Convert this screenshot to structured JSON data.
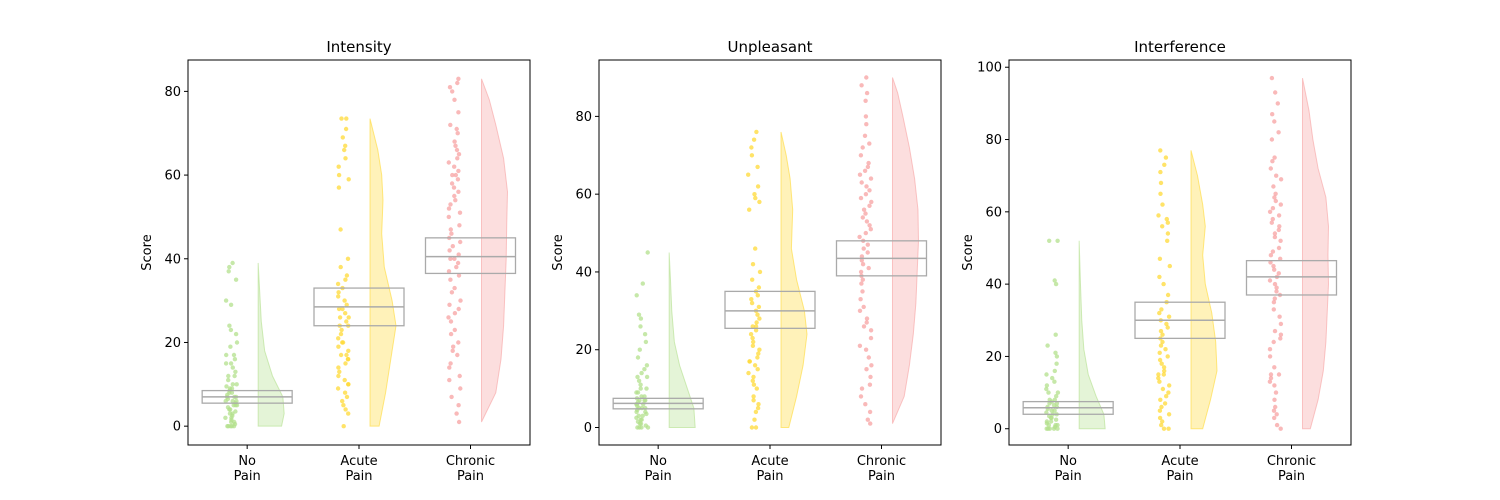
{
  "colors": {
    "No Pain": "#b3e08c",
    "Acute Pain": "#ffd936",
    "Chronic Pain": "#f7a1a1",
    "box": "#aaaaaa"
  },
  "chart_data": [
    {
      "type": "raincloud",
      "title": "Intensity",
      "ylabel": "Score",
      "ylim": [
        -4.5,
        87.5
      ],
      "yticks": [
        0,
        20,
        40,
        60,
        80
      ],
      "categories": [
        "No\nPain",
        "Acute\nPain",
        "Chronic\nPain"
      ],
      "groups": [
        {
          "name": "No Pain",
          "min": 0,
          "q1": 5.5,
          "median": 7,
          "q3": 8.5,
          "max": 39,
          "density": [
            [
              0,
              0.9
            ],
            [
              3,
              1
            ],
            [
              7,
              0.95
            ],
            [
              12,
              0.55
            ],
            [
              18,
              0.25
            ],
            [
              25,
              0.12
            ],
            [
              32,
              0.06
            ],
            [
              39,
              0
            ]
          ],
          "points": [
            0,
            0,
            0,
            0,
            0,
            0.5,
            1,
            1,
            1.5,
            2,
            2,
            2.5,
            3,
            3,
            3.5,
            4,
            4,
            4.5,
            5,
            5,
            5,
            5.5,
            6,
            6,
            6,
            6.5,
            7,
            7,
            7,
            7.5,
            8,
            8,
            8.5,
            9,
            9,
            9.5,
            10,
            10,
            11,
            12,
            12,
            13,
            14,
            15,
            15,
            16,
            17,
            17,
            19,
            20,
            22,
            23,
            24,
            29,
            30,
            35,
            37,
            38,
            39
          ]
        },
        {
          "name": "Acute Pain",
          "min": 0,
          "q1": 24,
          "median": 28.5,
          "q3": 33,
          "max": 73.5,
          "density": [
            [
              0,
              0.35
            ],
            [
              8,
              0.6
            ],
            [
              16,
              0.8
            ],
            [
              24,
              1
            ],
            [
              30,
              0.85
            ],
            [
              38,
              0.55
            ],
            [
              46,
              0.45
            ],
            [
              54,
              0.5
            ],
            [
              60,
              0.45
            ],
            [
              66,
              0.3
            ],
            [
              73.5,
              0
            ]
          ],
          "points": [
            0,
            3,
            4,
            5,
            6,
            7,
            8,
            9,
            10,
            10,
            11,
            12,
            13,
            14,
            15,
            16,
            16,
            17,
            17,
            18,
            19,
            20,
            20,
            21,
            22,
            23,
            24,
            24,
            25,
            26,
            26,
            27,
            28,
            28,
            29,
            30,
            31,
            32,
            33,
            34,
            35,
            36,
            38,
            40,
            47,
            57,
            59,
            60,
            62,
            64,
            66,
            67,
            69,
            71,
            73.5,
            73.5
          ]
        },
        {
          "name": "Chronic Pain",
          "min": 1,
          "q1": 36.5,
          "median": 40.5,
          "q3": 45,
          "max": 83,
          "density": [
            [
              1,
              0
            ],
            [
              8,
              0.55
            ],
            [
              16,
              0.75
            ],
            [
              24,
              0.85
            ],
            [
              32,
              0.9
            ],
            [
              40,
              0.95
            ],
            [
              48,
              0.97
            ],
            [
              56,
              1
            ],
            [
              64,
              0.85
            ],
            [
              72,
              0.55
            ],
            [
              78,
              0.3
            ],
            [
              83,
              0
            ]
          ],
          "points": [
            1,
            3,
            5,
            7,
            9,
            11,
            12,
            14,
            15,
            17,
            18,
            19,
            20,
            22,
            23,
            25,
            26,
            27,
            28,
            29,
            30,
            32,
            33,
            35,
            36,
            37,
            38,
            39,
            40,
            40,
            41,
            42,
            43,
            44,
            45,
            46,
            47,
            48,
            50,
            51,
            52,
            53,
            54,
            55,
            56,
            57,
            58,
            59,
            60,
            60,
            61,
            62,
            63,
            64,
            65,
            66,
            67,
            68,
            70,
            71,
            72,
            75,
            78,
            80,
            81,
            82,
            83
          ]
        }
      ]
    },
    {
      "type": "raincloud",
      "title": "Unpleasant",
      "ylabel": "Score",
      "ylim": [
        -4.5,
        94.5
      ],
      "yticks": [
        0,
        20,
        40,
        60,
        80
      ],
      "categories": [
        "No\nPain",
        "Acute\nPain",
        "Chronic\nPain"
      ],
      "groups": [
        {
          "name": "No Pain",
          "min": 0,
          "q1": 4.8,
          "median": 6.2,
          "q3": 7.5,
          "max": 45,
          "density": [
            [
              0,
              1
            ],
            [
              5,
              0.95
            ],
            [
              10,
              0.7
            ],
            [
              16,
              0.4
            ],
            [
              22,
              0.2
            ],
            [
              30,
              0.1
            ],
            [
              38,
              0.05
            ],
            [
              45,
              0
            ]
          ],
          "points": [
            0,
            0,
            0,
            0,
            0.5,
            1,
            1,
            1.5,
            2,
            2,
            2.5,
            3,
            3,
            3.5,
            4,
            4,
            4.5,
            5,
            5,
            5,
            5.5,
            6,
            6,
            6,
            6.5,
            7,
            7,
            7,
            7.5,
            8,
            8,
            9,
            9,
            10,
            10,
            11,
            12,
            13,
            13,
            14,
            15,
            16,
            18,
            20,
            22,
            24,
            26,
            28,
            29,
            34,
            37,
            45
          ]
        },
        {
          "name": "Acute Pain",
          "min": 0,
          "q1": 25.5,
          "median": 30,
          "q3": 35,
          "max": 76,
          "density": [
            [
              0,
              0.3
            ],
            [
              8,
              0.6
            ],
            [
              16,
              0.85
            ],
            [
              24,
              1
            ],
            [
              30,
              0.9
            ],
            [
              38,
              0.6
            ],
            [
              46,
              0.4
            ],
            [
              56,
              0.45
            ],
            [
              64,
              0.35
            ],
            [
              70,
              0.2
            ],
            [
              76,
              0
            ]
          ],
          "points": [
            0,
            0,
            2,
            4,
            5,
            6,
            7,
            8,
            10,
            11,
            12,
            13,
            14,
            15,
            16,
            17,
            17,
            18,
            19,
            20,
            21,
            22,
            23,
            24,
            25,
            26,
            26,
            27,
            28,
            29,
            30,
            31,
            32,
            33,
            34,
            35,
            36,
            38,
            40,
            42,
            46,
            56,
            58,
            59,
            60,
            62,
            65,
            67,
            70,
            72,
            74,
            76
          ]
        },
        {
          "name": "Chronic Pain",
          "min": 1,
          "q1": 39,
          "median": 43.5,
          "q3": 48,
          "max": 90,
          "density": [
            [
              1,
              0
            ],
            [
              8,
              0.45
            ],
            [
              16,
              0.65
            ],
            [
              24,
              0.8
            ],
            [
              32,
              0.9
            ],
            [
              40,
              0.95
            ],
            [
              48,
              1
            ],
            [
              56,
              0.98
            ],
            [
              64,
              0.85
            ],
            [
              72,
              0.65
            ],
            [
              80,
              0.4
            ],
            [
              86,
              0.2
            ],
            [
              90,
              0
            ]
          ],
          "points": [
            1,
            2,
            4,
            6,
            8,
            10,
            11,
            13,
            15,
            16,
            18,
            20,
            21,
            23,
            25,
            26,
            27,
            28,
            30,
            31,
            33,
            35,
            37,
            38,
            39,
            40,
            41,
            42,
            43,
            44,
            45,
            46,
            47,
            48,
            49,
            50,
            51,
            52,
            53,
            54,
            55,
            56,
            57,
            58,
            59,
            60,
            61,
            62,
            63,
            64,
            65,
            66,
            67,
            68,
            70,
            72,
            73,
            75,
            78,
            80,
            84,
            86,
            88,
            90
          ]
        }
      ]
    },
    {
      "type": "raincloud",
      "title": "Interference",
      "ylabel": "Score",
      "ylim": [
        -4.5,
        102
      ],
      "yticks": [
        0,
        20,
        40,
        60,
        80,
        100
      ],
      "categories": [
        "No\nPain",
        "Acute\nPain",
        "Chronic\nPain"
      ],
      "groups": [
        {
          "name": "No Pain",
          "min": 0,
          "q1": 4,
          "median": 5.8,
          "q3": 7.5,
          "max": 52,
          "density": [
            [
              0,
              1
            ],
            [
              4,
              0.95
            ],
            [
              9,
              0.65
            ],
            [
              15,
              0.35
            ],
            [
              22,
              0.18
            ],
            [
              30,
              0.1
            ],
            [
              40,
              0.05
            ],
            [
              52,
              0
            ]
          ],
          "points": [
            0,
            0,
            0,
            0,
            0,
            0.5,
            1,
            1,
            1,
            1.5,
            2,
            2,
            2.5,
            3,
            3,
            3.5,
            4,
            4,
            4.5,
            5,
            5,
            5.5,
            6,
            6,
            6.5,
            7,
            7,
            7.5,
            8,
            8,
            9,
            10,
            10,
            11,
            12,
            13,
            14,
            15,
            16,
            18,
            20,
            21,
            23,
            26,
            40,
            41,
            52,
            52
          ]
        },
        {
          "name": "Acute Pain",
          "min": 0,
          "q1": 25,
          "median": 30,
          "q3": 35,
          "max": 77,
          "density": [
            [
              0,
              0.45
            ],
            [
              8,
              0.75
            ],
            [
              16,
              1
            ],
            [
              24,
              0.95
            ],
            [
              32,
              0.8
            ],
            [
              40,
              0.55
            ],
            [
              48,
              0.45
            ],
            [
              56,
              0.55
            ],
            [
              62,
              0.45
            ],
            [
              70,
              0.25
            ],
            [
              77,
              0
            ]
          ],
          "points": [
            0,
            0,
            1,
            2,
            3,
            4,
            5,
            6,
            7,
            8,
            9,
            10,
            11,
            12,
            13,
            14,
            15,
            15,
            16,
            17,
            18,
            19,
            20,
            21,
            22,
            23,
            24,
            25,
            26,
            27,
            28,
            29,
            30,
            31,
            32,
            33,
            35,
            37,
            40,
            42,
            45,
            47,
            52,
            54,
            56,
            57,
            58,
            59,
            62,
            65,
            68,
            71,
            73,
            75,
            77
          ]
        },
        {
          "name": "Chronic Pain",
          "min": 0,
          "q1": 37,
          "median": 42,
          "q3": 46.5,
          "max": 97,
          "density": [
            [
              0,
              0.3
            ],
            [
              8,
              0.6
            ],
            [
              16,
              0.8
            ],
            [
              24,
              0.9
            ],
            [
              32,
              0.95
            ],
            [
              40,
              1
            ],
            [
              48,
              0.98
            ],
            [
              56,
              1
            ],
            [
              64,
              0.9
            ],
            [
              72,
              0.6
            ],
            [
              80,
              0.4
            ],
            [
              88,
              0.25
            ],
            [
              97,
              0
            ]
          ],
          "points": [
            0,
            1,
            3,
            4,
            5,
            6,
            8,
            10,
            12,
            13,
            14,
            15,
            15,
            17,
            20,
            22,
            24,
            25,
            26,
            27,
            29,
            31,
            33,
            35,
            36,
            37,
            38,
            39,
            40,
            41,
            42,
            43,
            44,
            45,
            46,
            47,
            48,
            49,
            50,
            52,
            53,
            54,
            55,
            56,
            57,
            58,
            59,
            60,
            61,
            62,
            63,
            64,
            65,
            67,
            69,
            70,
            72,
            74,
            75,
            80,
            82,
            85,
            87,
            90,
            93,
            97
          ]
        }
      ]
    }
  ]
}
